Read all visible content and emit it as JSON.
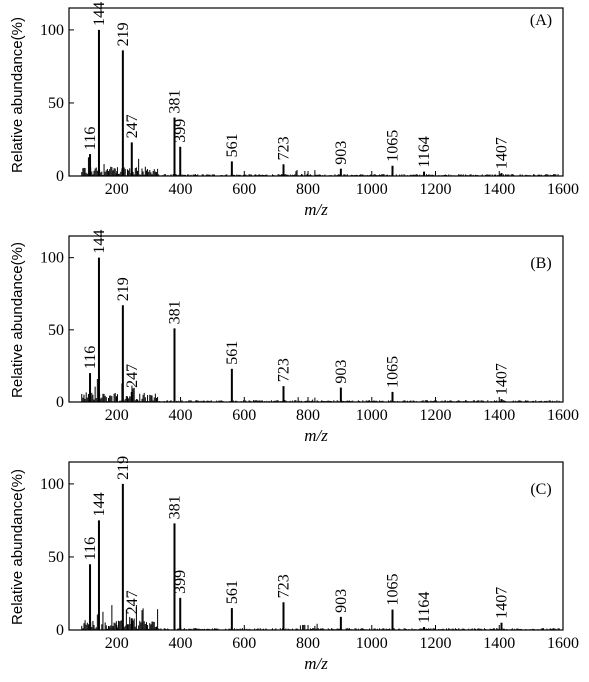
{
  "chart_data": [
    {
      "type": "bar",
      "panel_label": "(A)",
      "ylabel": "Relative abundance(%)",
      "xlabel": "m/z",
      "xlim": [
        50,
        1600
      ],
      "ylim": [
        0,
        115
      ],
      "xticks": [
        200,
        400,
        600,
        800,
        1000,
        1200,
        1400,
        1600
      ],
      "yticks": [
        0,
        50,
        100
      ],
      "peaks": [
        {
          "mz": 116,
          "value": 15
        },
        {
          "mz": 144,
          "value": 100
        },
        {
          "mz": 219,
          "value": 86
        },
        {
          "mz": 247,
          "value": 23
        },
        {
          "mz": 381,
          "value": 40
        },
        {
          "mz": 399,
          "value": 20
        },
        {
          "mz": 561,
          "value": 10
        },
        {
          "mz": 723,
          "value": 8
        },
        {
          "mz": 903,
          "value": 5
        },
        {
          "mz": 1065,
          "value": 7
        },
        {
          "mz": 1164,
          "value": 3
        },
        {
          "mz": 1407,
          "value": 2
        }
      ],
      "peak_labels": [
        "116",
        "144",
        "219",
        "247",
        "381",
        "399",
        "561",
        "723",
        "903",
        "1065",
        "1164",
        "1407"
      ]
    },
    {
      "type": "bar",
      "panel_label": "(B)",
      "ylabel": "Relative abundance(%)",
      "xlabel": "m/z",
      "xlim": [
        50,
        1600
      ],
      "ylim": [
        0,
        115
      ],
      "xticks": [
        200,
        400,
        600,
        800,
        1000,
        1200,
        1400,
        1600
      ],
      "yticks": [
        0,
        50,
        100
      ],
      "peaks": [
        {
          "mz": 116,
          "value": 20
        },
        {
          "mz": 144,
          "value": 100
        },
        {
          "mz": 219,
          "value": 67
        },
        {
          "mz": 247,
          "value": 7
        },
        {
          "mz": 381,
          "value": 51
        },
        {
          "mz": 561,
          "value": 23
        },
        {
          "mz": 723,
          "value": 11
        },
        {
          "mz": 903,
          "value": 10
        },
        {
          "mz": 1065,
          "value": 7
        },
        {
          "mz": 1407,
          "value": 2
        }
      ],
      "peak_labels": [
        "116",
        "144",
        "219",
        "247",
        "381",
        "561",
        "723",
        "903",
        "1065",
        "1407"
      ]
    },
    {
      "type": "bar",
      "panel_label": "(C)",
      "ylabel": "Relative abundance(%)",
      "xlabel": "m/z",
      "xlim": [
        50,
        1600
      ],
      "ylim": [
        0,
        115
      ],
      "xticks": [
        200,
        400,
        600,
        800,
        1000,
        1200,
        1400,
        1600
      ],
      "yticks": [
        0,
        50,
        100
      ],
      "peaks": [
        {
          "mz": 116,
          "value": 45
        },
        {
          "mz": 144,
          "value": 75
        },
        {
          "mz": 219,
          "value": 100
        },
        {
          "mz": 247,
          "value": 8
        },
        {
          "mz": 381,
          "value": 73
        },
        {
          "mz": 399,
          "value": 22
        },
        {
          "mz": 561,
          "value": 15
        },
        {
          "mz": 723,
          "value": 19
        },
        {
          "mz": 903,
          "value": 9
        },
        {
          "mz": 1065,
          "value": 14
        },
        {
          "mz": 1164,
          "value": 2
        },
        {
          "mz": 1407,
          "value": 5
        }
      ],
      "peak_labels": [
        "116",
        "144",
        "219",
        "247",
        "381",
        "399",
        "561",
        "723",
        "903",
        "1065",
        "1164",
        "1407"
      ]
    }
  ]
}
